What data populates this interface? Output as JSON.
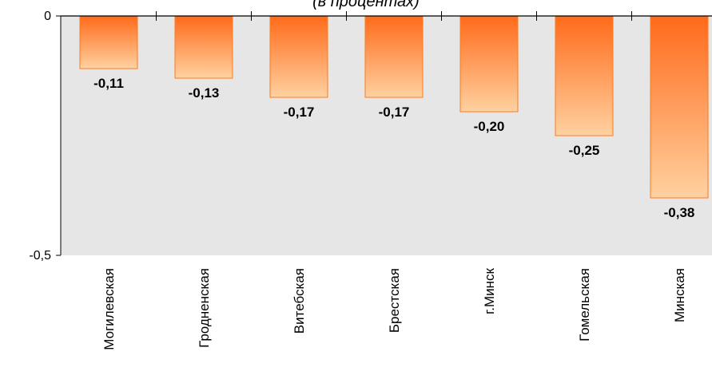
{
  "chart_data": {
    "type": "bar",
    "title": "(в процентах)",
    "categories": [
      "Могилевская",
      "Гродненская",
      "Витебская",
      "Брестская",
      "г.Минск",
      "Гомельская",
      "Минская"
    ],
    "values": [
      -0.11,
      -0.13,
      -0.17,
      -0.17,
      -0.2,
      -0.25,
      -0.38
    ],
    "value_labels": [
      "-0,11",
      "-0,13",
      "-0,17",
      "-0,17",
      "-0,20",
      "-0,25",
      "-0,38"
    ],
    "ylim": [
      -0.5,
      0
    ],
    "yticks": [
      0,
      -0.5
    ],
    "ytick_labels": [
      "0",
      "-0,5"
    ],
    "xlabel": "",
    "ylabel": "",
    "grid": false,
    "colors": {
      "plot_background": "#e6e6e6",
      "bar_top": "#ff6a1a",
      "bar_bottom": "#ffd1a0",
      "bar_border": "#ff7a1a",
      "axis": "#000000"
    }
  }
}
